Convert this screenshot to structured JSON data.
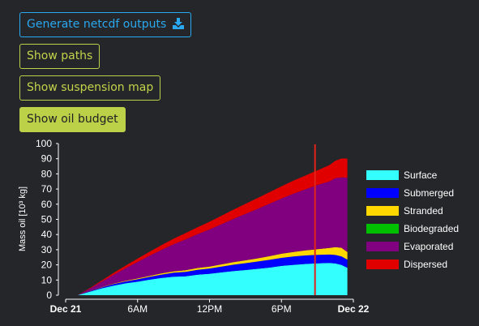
{
  "buttons": {
    "generate_netcdf": "Generate netcdf outputs",
    "show_paths": "Show paths",
    "show_suspension_map": "Show suspension map",
    "show_oil_budget": "Show oil budget"
  },
  "icons": {
    "download": "download-icon"
  },
  "colors": {
    "primary": "#2aa8f0",
    "accent": "#bcd048",
    "background": "#252629",
    "time_marker": "#e2231a"
  },
  "chart_data": {
    "type": "area",
    "stacked": true,
    "ylabel": "Mass oil [10³ kg]",
    "xlabel": "",
    "ylim": [
      0,
      100
    ],
    "yticks": [
      0,
      10,
      20,
      30,
      40,
      50,
      60,
      70,
      80,
      90,
      100
    ],
    "xticks": [
      {
        "t": 0,
        "label": "Dec 21",
        "bold": true
      },
      {
        "t": 6,
        "label": "6AM",
        "bold": false
      },
      {
        "t": 12,
        "label": "12PM",
        "bold": false
      },
      {
        "t": 18,
        "label": "6PM",
        "bold": false
      },
      {
        "t": 24,
        "label": "Dec 22",
        "bold": true
      }
    ],
    "x_unit": "hours since Dec 21 00:00",
    "x": [
      1,
      2,
      3,
      4,
      5,
      6,
      7,
      8,
      9,
      10,
      11,
      12,
      13,
      14,
      15,
      16,
      17,
      18,
      19,
      20,
      21,
      22,
      22.5,
      23,
      23.5
    ],
    "time_marker": 20.8,
    "series": [
      {
        "name": "Surface",
        "color": "#33ffff",
        "values": [
          0,
          2.3,
          4.5,
          6.3,
          7.8,
          8.9,
          10.2,
          11.4,
          12.2,
          12.4,
          13.5,
          14.1,
          15.0,
          15.9,
          16.6,
          17.4,
          18.2,
          19.3,
          20.0,
          20.6,
          21.0,
          21.3,
          20.9,
          20.0,
          18.0
        ]
      },
      {
        "name": "Submerged",
        "color": "#0000ff",
        "values": [
          0,
          0.3,
          0.6,
          1.0,
          1.3,
          1.6,
          1.9,
          2.2,
          2.6,
          3.0,
          3.2,
          3.5,
          3.8,
          4.2,
          4.5,
          4.8,
          5.1,
          5.3,
          5.5,
          5.6,
          5.6,
          5.5,
          5.6,
          5.6,
          5.5
        ]
      },
      {
        "name": "Stranded",
        "color": "#ffd700",
        "values": [
          0,
          0.1,
          0.2,
          0.3,
          0.4,
          0.5,
          0.6,
          0.8,
          0.9,
          1.0,
          1.2,
          1.3,
          1.5,
          1.7,
          1.9,
          2.1,
          2.4,
          2.7,
          3.0,
          3.3,
          3.7,
          4.3,
          5.2,
          5.7,
          5.0
        ]
      },
      {
        "name": "Biodegraded",
        "color": "#00c000",
        "values": [
          0,
          0,
          0,
          0,
          0,
          0,
          0,
          0,
          0,
          0,
          0,
          0,
          0,
          0,
          0,
          0,
          0,
          0,
          0,
          0,
          0,
          0,
          0,
          0,
          0
        ]
      },
      {
        "name": "Evaporated",
        "color": "#800080",
        "values": [
          0,
          1.5,
          3.5,
          5.8,
          8.3,
          10.9,
          13.3,
          15.5,
          17.9,
          20.4,
          22.3,
          24.4,
          26.5,
          28.5,
          30.6,
          32.6,
          34.6,
          36.4,
          38.4,
          40.3,
          42.4,
          43.9,
          45.5,
          46.4,
          49.0
        ]
      },
      {
        "name": "Dispersed",
        "color": "#e00000",
        "values": [
          0,
          0.4,
          0.8,
          1.3,
          1.7,
          2.2,
          2.6,
          3.1,
          3.6,
          4.1,
          4.6,
          5.1,
          5.6,
          6.1,
          6.6,
          7.1,
          7.6,
          8.1,
          8.6,
          9.1,
          9.6,
          10.8,
          11.4,
          12.4,
          12.6
        ]
      }
    ]
  }
}
